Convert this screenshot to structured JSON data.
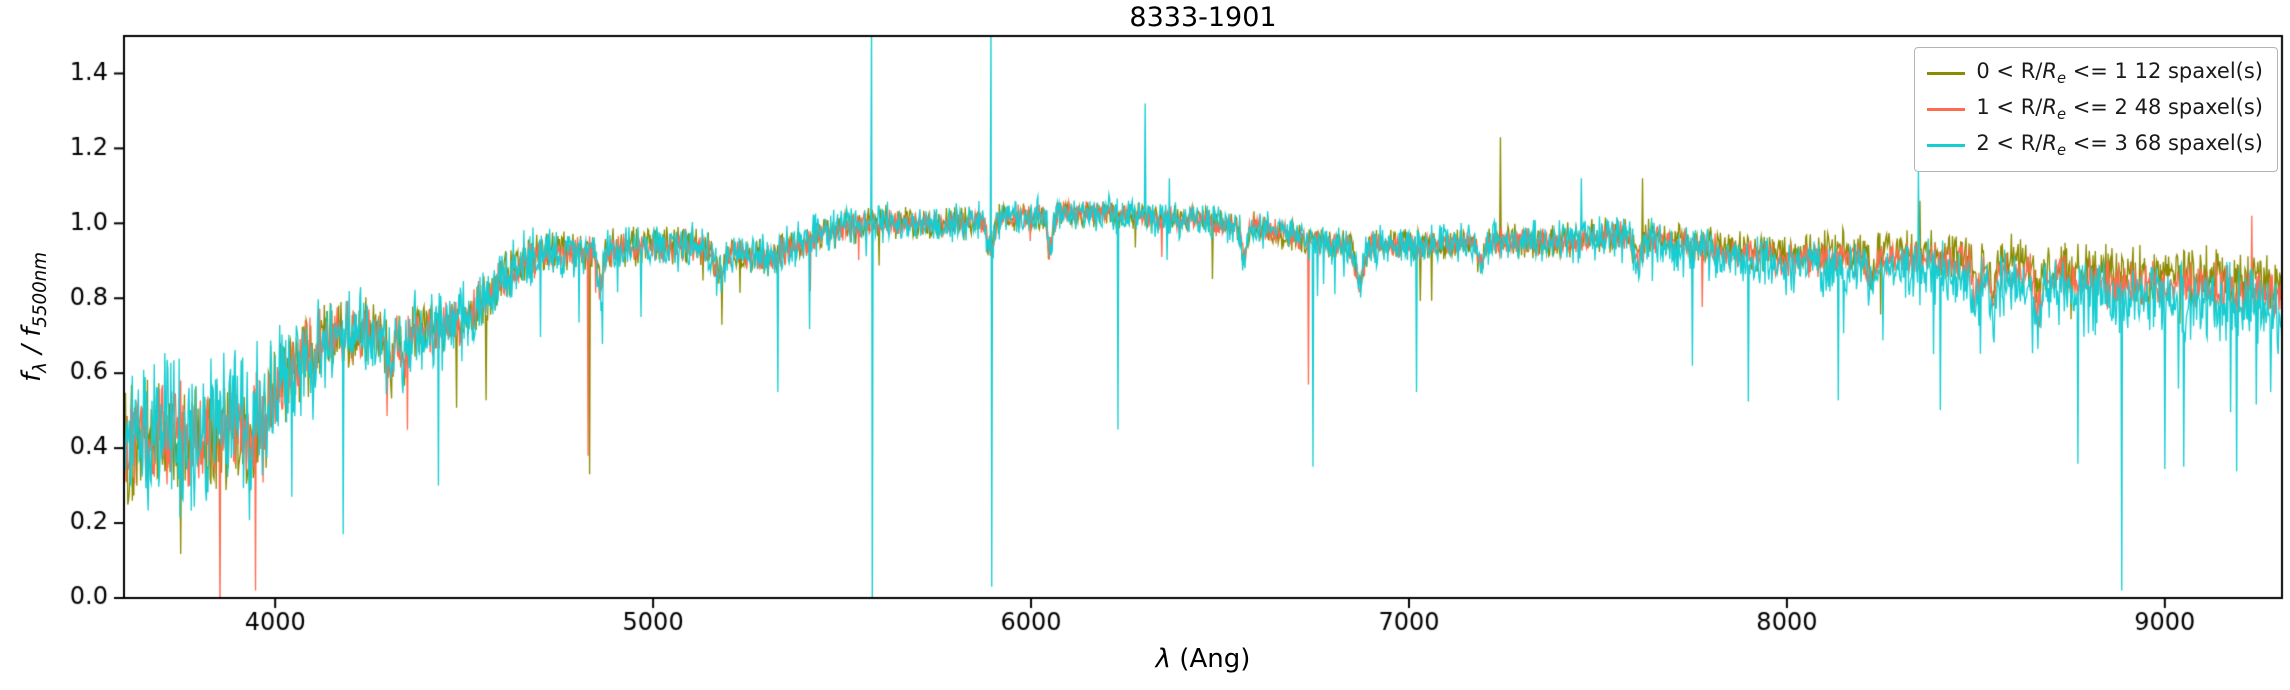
{
  "axes": {
    "xlabel": {
      "symbol": "λ",
      "rest": " (Ang)"
    },
    "ylabel": {
      "f1": "f",
      "sub1": "λ",
      "sep": " / ",
      "f2": "f",
      "sub2": "5500nm"
    }
  },
  "chart_data": {
    "type": "line",
    "title": "8333-1901",
    "xlabel": "λ (Ang)",
    "ylabel": "f_λ / f_5500nm",
    "xlim": [
      3600,
      9310
    ],
    "ylim": [
      0,
      1.5
    ],
    "xticks": [
      4000,
      5000,
      6000,
      7000,
      8000,
      9000
    ],
    "yticks": [
      "0.0",
      "0.2",
      "0.4",
      "0.6",
      "0.8",
      "1.0",
      "1.2",
      "1.4"
    ],
    "grid": false,
    "legend_position": "upper right",
    "continuum": {
      "x": [
        3600,
        3700,
        3800,
        3900,
        4000,
        4100,
        4200,
        4300,
        4400,
        4500,
        4600,
        4700,
        4800,
        4900,
        5000,
        5100,
        5200,
        5300,
        5400,
        5500,
        5600,
        5800,
        6000,
        6200,
        6400,
        6600,
        6800,
        7000,
        7200,
        7400,
        7600,
        7800,
        8000,
        8200,
        8400,
        8600,
        8800,
        9000,
        9200,
        9310
      ],
      "y": [
        0.43,
        0.41,
        0.43,
        0.47,
        0.55,
        0.68,
        0.71,
        0.7,
        0.71,
        0.74,
        0.85,
        0.92,
        0.93,
        0.93,
        0.94,
        0.94,
        0.92,
        0.91,
        0.95,
        0.99,
        1.0,
        1.0,
        1.02,
        1.03,
        1.01,
        0.99,
        0.94,
        0.94,
        0.95,
        0.95,
        0.97,
        0.93,
        0.9,
        0.91,
        0.9,
        0.87,
        0.84,
        0.83,
        0.82,
        0.81
      ]
    },
    "noise_profile": {
      "x": [
        3600,
        3800,
        4000,
        4200,
        4500,
        4800,
        5200,
        5600,
        6000,
        6500,
        7000,
        7500,
        8000,
        8400,
        8800,
        9100,
        9310
      ],
      "amplitude": [
        0.12,
        0.115,
        0.09,
        0.065,
        0.05,
        0.035,
        0.032,
        0.028,
        0.026,
        0.025,
        0.028,
        0.03,
        0.035,
        0.042,
        0.05,
        0.055,
        0.06
      ]
    },
    "absorption_features": [
      {
        "x": 3934,
        "width": 8,
        "depth": 0.12
      },
      {
        "x": 3969,
        "width": 7,
        "depth": 0.1
      },
      {
        "x": 4102,
        "width": 7,
        "depth": 0.07
      },
      {
        "x": 4305,
        "width": 9,
        "depth": 0.08
      },
      {
        "x": 4341,
        "width": 6,
        "depth": 0.06
      },
      {
        "x": 4861,
        "width": 7,
        "depth": 0.1
      },
      {
        "x": 5175,
        "width": 10,
        "depth": 0.07
      },
      {
        "x": 5893,
        "width": 8,
        "depth": 0.08
      },
      {
        "x": 6050,
        "width": 6,
        "depth": 0.1
      },
      {
        "x": 6563,
        "width": 7,
        "depth": 0.08
      },
      {
        "x": 6870,
        "width": 11,
        "depth": 0.1
      },
      {
        "x": 7190,
        "width": 10,
        "depth": 0.05
      },
      {
        "x": 7605,
        "width": 11,
        "depth": 0.07
      },
      {
        "x": 8227,
        "width": 9,
        "depth": 0.06
      },
      {
        "x": 8502,
        "width": 8,
        "depth": 0.08
      },
      {
        "x": 8545,
        "width": 8,
        "depth": 0.09
      },
      {
        "x": 8665,
        "width": 8,
        "depth": 0.08
      }
    ],
    "series": [
      {
        "label": {
          "pre": "0 < R/",
          "rvar": "R",
          "sub": "e",
          "post": " <= 1 12 spaxel(s)"
        },
        "spaxel_count": 12,
        "color": "#8c8c00",
        "red_offset": 0.03,
        "noise_scale": 1.0,
        "seed": 101,
        "extra_red_spikes": false,
        "narrow_features": [
          {
            "x": 4832,
            "peak": 0.33
          },
          {
            "x": 7242,
            "peak": 1.23
          },
          {
            "x": 7618,
            "peak": 1.12
          },
          {
            "x": 8352,
            "peak": 1.06
          }
        ]
      },
      {
        "label": {
          "pre": "1 < R/",
          "rvar": "R",
          "sub": "e",
          "post": " <= 2 48 spaxel(s)"
        },
        "spaxel_count": 48,
        "color": "#ff6b4f",
        "red_offset": 0.0,
        "noise_scale": 0.8,
        "seed": 202,
        "extra_red_spikes": false,
        "narrow_features": [
          {
            "x": 4828,
            "peak": 0.38
          },
          {
            "x": 6733,
            "peak": 0.57
          },
          {
            "x": 9230,
            "peak": 1.02
          }
        ]
      },
      {
        "label": {
          "pre": "2 < R/",
          "rvar": "R",
          "sub": "e",
          "post": " <= 3 68 spaxel(s)"
        },
        "spaxel_count": 68,
        "color": "#16cdd1",
        "red_offset": -0.04,
        "noise_scale": 1.25,
        "seed": 303,
        "extra_red_spikes": true,
        "narrow_features": [
          {
            "x": 4180,
            "peak": 0.17
          },
          {
            "x": 4432,
            "peak": 0.3
          },
          {
            "x": 5330,
            "peak": 0.55
          },
          {
            "x": 5578,
            "peak": 1.55,
            "trough": -0.05
          },
          {
            "x": 5894,
            "peak": 1.55,
            "trough": 0.03
          },
          {
            "x": 6230,
            "peak": 0.45
          },
          {
            "x": 6302,
            "peak": 1.32
          },
          {
            "x": 6365,
            "peak": 1.12
          },
          {
            "x": 6745,
            "peak": 0.35
          },
          {
            "x": 7020,
            "peak": 0.55
          },
          {
            "x": 7455,
            "peak": 1.12
          },
          {
            "x": 7750,
            "peak": 0.62
          },
          {
            "x": 8348,
            "peak": 1.15
          },
          {
            "x": 8885,
            "peak": 0.02
          },
          {
            "x": 9050,
            "peak": 0.35
          },
          {
            "x": 9280,
            "peak": 0.55
          }
        ]
      }
    ]
  }
}
